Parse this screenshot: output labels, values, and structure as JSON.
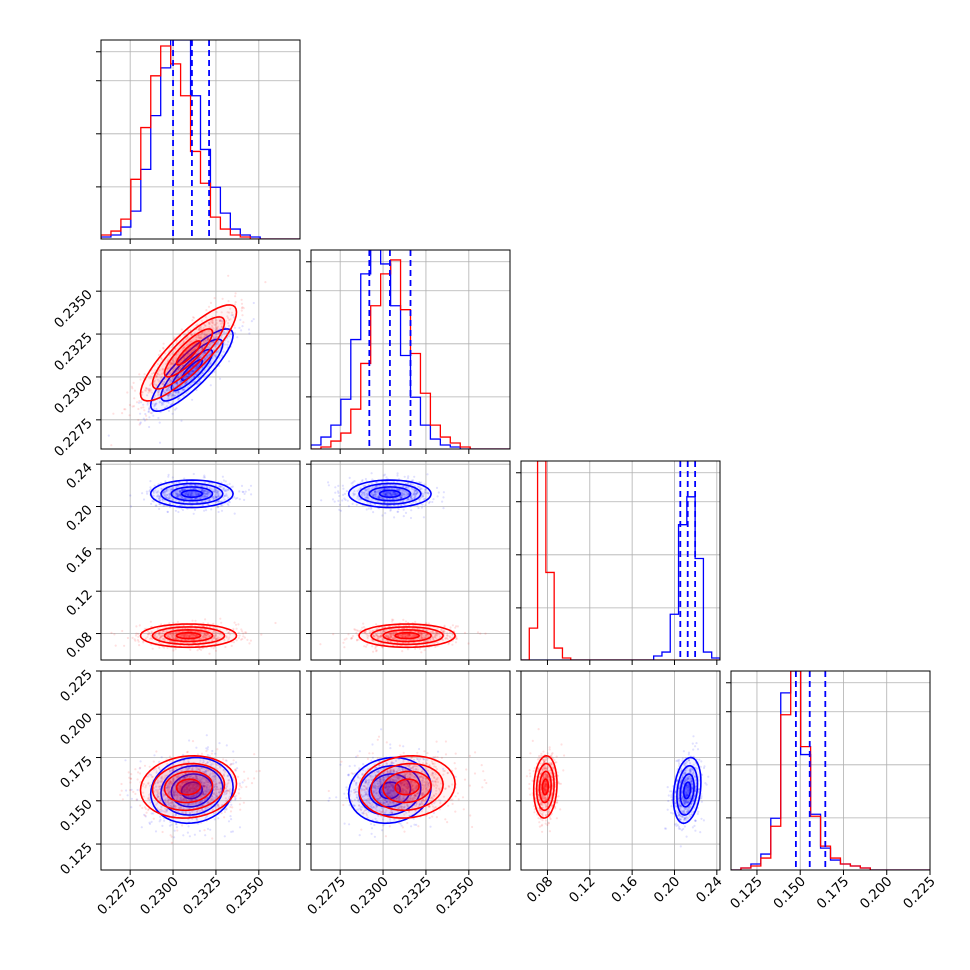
{
  "chart_data": {
    "type": "scatter",
    "colors": {
      "blue": "#0000ff",
      "red": "#ff0000"
    },
    "grid": true,
    "parameters": [
      {
        "ticks": [
          "0.2275",
          "0.2300",
          "0.2325",
          "0.2350"
        ],
        "tick_values": [
          0.2275,
          0.23,
          0.2325,
          0.235
        ],
        "range": [
          0.2258,
          0.2374
        ]
      },
      {
        "ticks": [
          "0.2275",
          "0.2300",
          "0.2325",
          "0.2350"
        ],
        "tick_values": [
          0.2275,
          0.23,
          0.2325,
          0.235
        ],
        "range": [
          0.2258,
          0.2374
        ]
      },
      {
        "ticks": [
          "0.08",
          "0.12",
          "0.16",
          "0.20",
          "0.24"
        ],
        "tick_values": [
          0.08,
          0.12,
          0.16,
          0.2,
          0.24
        ],
        "range": [
          0.055,
          0.243
        ]
      },
      {
        "ticks": [
          "0.125",
          "0.150",
          "0.175",
          "0.200",
          "0.225"
        ],
        "tick_values": [
          0.125,
          0.15,
          0.175,
          0.2,
          0.225
        ],
        "range": [
          0.11,
          0.225
        ]
      }
    ],
    "series": [
      {
        "color": "#0000ff",
        "means": [
          0.2311,
          0.2304,
          0.212,
          0.156
        ],
        "stds": [
          0.0012,
          0.0012,
          0.0065,
          0.0095
        ],
        "correlation": [
          [
            1,
            0.85,
            0.0,
            0.1
          ],
          [
            0.85,
            1,
            0.0,
            0.1
          ],
          [
            0.0,
            0.0,
            1,
            0.25
          ],
          [
            0.1,
            0.1,
            0.25,
            1
          ]
        ],
        "quantile_lines": [
          [
            0.23,
            0.2311,
            0.2321
          ],
          [
            0.2292,
            0.2304,
            0.2316
          ],
          [
            0.2055,
            0.2125,
            0.2195
          ],
          [
            0.1475,
            0.1555,
            0.1645
          ]
        ],
        "histograms": [
          {
            "edges_range": [
              0.2258,
              0.2374
            ],
            "heights": [
              0.01,
              0.02,
              0.06,
              0.14,
              0.35,
              0.62,
              0.86,
              1.0,
              1.0,
              0.72,
              0.45,
              0.26,
              0.13,
              0.05,
              0.02,
              0.01,
              0,
              0,
              0,
              0
            ]
          },
          {
            "edges_range": [
              0.2258,
              0.2374
            ],
            "heights": [
              0.02,
              0.06,
              0.12,
              0.25,
              0.55,
              0.88,
              1.0,
              0.93,
              0.72,
              0.47,
              0.26,
              0.12,
              0.05,
              0.02,
              0.01,
              0,
              0,
              0,
              0,
              0
            ]
          },
          {
            "edges_range": [
              0.055,
              0.243
            ],
            "heights": [
              0,
              0,
              0,
              0,
              0,
              0,
              0,
              0,
              0,
              0,
              0,
              0,
              0,
              0,
              0,
              0,
              0.02,
              0.04,
              0.23,
              0.68,
              0.82,
              0.51,
              0.04,
              0.01
            ]
          },
          {
            "edges_range": [
              0.11,
              0.225
            ],
            "heights": [
              0,
              0.01,
              0.03,
              0.08,
              0.26,
              0.89,
              1.0,
              0.58,
              0.28,
              0.11,
              0.05,
              0.03,
              0.02,
              0.01,
              0,
              0,
              0,
              0,
              0,
              0
            ]
          }
        ]
      },
      {
        "color": "#ff0000",
        "means": [
          0.2309,
          0.2314,
          0.078,
          0.158
        ],
        "stds": [
          0.0014,
          0.0014,
          0.0055,
          0.009
        ],
        "correlation": [
          [
            1,
            0.85,
            0.0,
            0.1
          ],
          [
            0.85,
            1,
            0.0,
            0.1
          ],
          [
            0.0,
            0.0,
            1,
            0.1
          ],
          [
            0.1,
            0.1,
            0.1,
            1
          ]
        ],
        "quantile_lines": [],
        "histograms": [
          {
            "edges_range": [
              0.2258,
              0.2374
            ],
            "heights": [
              0.02,
              0.04,
              0.1,
              0.3,
              0.56,
              0.82,
              0.97,
              0.88,
              0.72,
              0.44,
              0.28,
              0.11,
              0.05,
              0.02,
              0.01,
              0,
              0,
              0,
              0,
              0
            ]
          },
          {
            "edges_range": [
              0.2258,
              0.2374
            ],
            "heights": [
              0,
              0.01,
              0.04,
              0.08,
              0.2,
              0.43,
              0.72,
              0.88,
              0.95,
              0.7,
              0.48,
              0.28,
              0.12,
              0.06,
              0.03,
              0.01,
              0,
              0,
              0,
              0
            ]
          },
          {
            "edges_range": [
              0.055,
              0.243
            ],
            "heights": [
              0,
              0.16,
              1.0,
              0.44,
              0.06,
              0.01,
              0,
              0,
              0,
              0,
              0,
              0,
              0,
              0,
              0,
              0,
              0,
              0,
              0,
              0,
              0,
              0,
              0,
              0
            ]
          },
          {
            "edges_range": [
              0.11,
              0.225
            ],
            "heights": [
              0,
              0.01,
              0.02,
              0.06,
              0.22,
              0.78,
              1.0,
              0.62,
              0.27,
              0.12,
              0.06,
              0.03,
              0.02,
              0.01,
              0,
              0,
              0,
              0,
              0,
              0
            ]
          }
        ]
      }
    ]
  }
}
